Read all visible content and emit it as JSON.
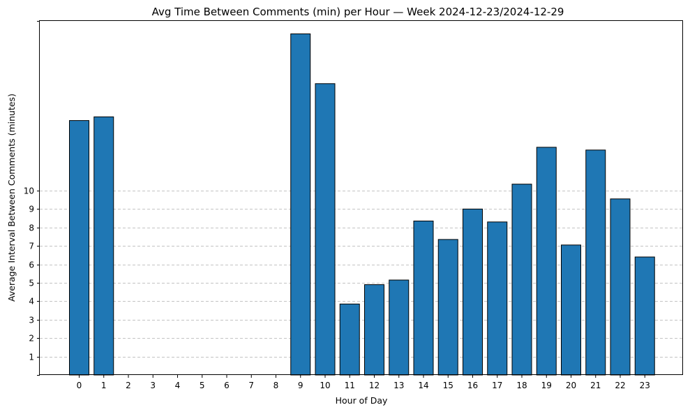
{
  "chart_data": {
    "type": "bar",
    "title": "Avg Time Between Comments (min) per Hour — Week 2024-12-23/2024-12-29",
    "xlabel": "Hour of Day",
    "ylabel": "Average Interval Between Comments (minutes)",
    "categories": [
      "0",
      "1",
      "2",
      "3",
      "4",
      "5",
      "6",
      "7",
      "8",
      "9",
      "10",
      "11",
      "12",
      "13",
      "14",
      "15",
      "16",
      "17",
      "18",
      "19",
      "20",
      "21",
      "22",
      "23"
    ],
    "values": [
      13.8,
      14.0,
      0,
      0,
      0,
      0,
      0,
      0,
      0,
      18.5,
      15.8,
      3.85,
      4.9,
      5.15,
      8.35,
      7.35,
      9.0,
      8.3,
      10.35,
      12.35,
      7.05,
      12.2,
      9.55,
      6.4
    ],
    "ylim": [
      0,
      19.2
    ],
    "yticks": [
      1,
      2,
      3,
      4,
      5,
      6,
      7,
      8,
      9,
      10
    ],
    "grid": "y, dashed, ticks 1-10",
    "bar_color": "#1f77b4",
    "edge_color": "#000000"
  }
}
